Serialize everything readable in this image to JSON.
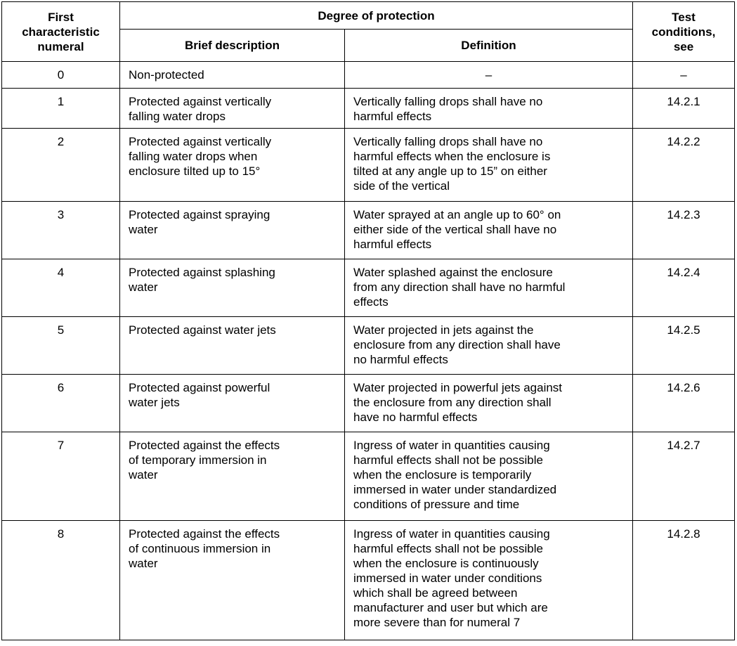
{
  "table": {
    "headers": {
      "first_numeral": "First\ncharacteristic\nnumeral",
      "degree_of_protection": "Degree of protection",
      "brief_description": "Brief description",
      "definition": "Definition",
      "test_conditions": "Test\nconditions,\nsee"
    },
    "rows": [
      {
        "numeral": "0",
        "brief": "Non-protected",
        "definition": "–",
        "test": "–"
      },
      {
        "numeral": "1",
        "brief": "Protected against vertically\nfalling water drops",
        "definition": "Vertically falling drops shall have no\nharmful effects",
        "test": "14.2.1"
      },
      {
        "numeral": "2",
        "brief": "Protected against vertically\nfalling water drops when\nenclosure tilted up to 15°",
        "definition": "Vertically falling drops shall have no\nharmful effects when the enclosure is\ntilted at any angle up to 15” on either\nside of the vertical",
        "test": "14.2.2"
      },
      {
        "numeral": "3",
        "brief": "Protected against spraying\nwater",
        "definition": "Water sprayed at an angle up to 60° on\neither side of the vertical shall have no\nharmful effects",
        "test": "14.2.3"
      },
      {
        "numeral": "4",
        "brief": "Protected against splashing\nwater",
        "definition": "Water splashed against the enclosure\nfrom any direction shall have no harmful\neffects",
        "test": "14.2.4"
      },
      {
        "numeral": "5",
        "brief": "Protected against water jets",
        "definition": "Water projected in jets against the\nenclosure from any direction shall have\nno harmful effects",
        "test": "14.2.5"
      },
      {
        "numeral": "6",
        "brief": "Protected against powerful\nwater jets",
        "definition": "Water projected in powerful jets against\nthe enclosure from any direction shall\nhave no harmful effects",
        "test": "14.2.6"
      },
      {
        "numeral": "7",
        "brief": "Protected against the effects\nof temporary immersion in\nwater",
        "definition": "Ingress of water in quantities causing\nharmful effects shall not be possible\nwhen the enclosure is temporarily\nimmersed in water under standardized\nconditions of pressure and time",
        "test": "14.2.7"
      },
      {
        "numeral": "8",
        "brief": "Protected against the effects\nof continuous immersion in\nwater",
        "definition": "Ingress of water in quantities causing\nharmful effects shall not be possible\nwhen the enclosure is continuously\nimmersed in water under conditions\nwhich shall be agreed between\nmanufacturer and user but which are\nmore severe than for numeral 7",
        "test": "14.2.8"
      }
    ]
  }
}
